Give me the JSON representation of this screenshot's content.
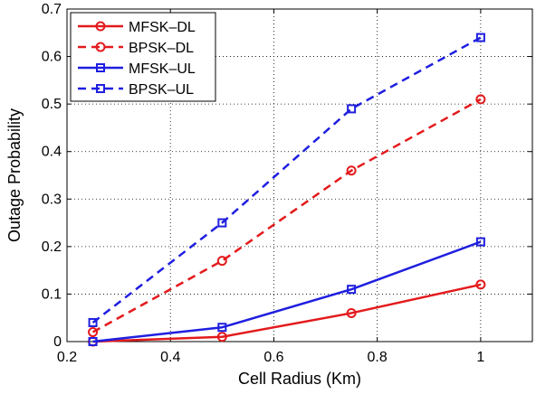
{
  "chart_data": {
    "type": "line",
    "xlabel": "Cell Radius (Km)",
    "ylabel": "Outage Probability",
    "xlim": [
      0.2,
      1.1
    ],
    "ylim": [
      0,
      0.7
    ],
    "xticks": [
      0.2,
      0.4,
      0.6,
      0.8,
      1
    ],
    "xtick_labels": [
      "0.2",
      "0.4",
      "0.6",
      "0.8",
      "1"
    ],
    "yticks": [
      0,
      0.1,
      0.2,
      0.3,
      0.4,
      0.5,
      0.6,
      0.7
    ],
    "ytick_labels": [
      "0",
      "0.1",
      "0.2",
      "0.3",
      "0.4",
      "0.5",
      "0.6",
      "0.7"
    ],
    "grid": true,
    "legend_position": "top-left",
    "x": [
      0.25,
      0.5,
      0.75,
      1.0
    ],
    "series": [
      {
        "name": "MFSK–DL",
        "values": [
          0.0,
          0.01,
          0.06,
          0.12
        ],
        "color": "#e31a1c",
        "line": "solid",
        "marker": "circle"
      },
      {
        "name": "BPSK–DL",
        "values": [
          0.02,
          0.17,
          0.36,
          0.51
        ],
        "color": "#e31a1c",
        "line": "dashed",
        "marker": "circle"
      },
      {
        "name": "MFSK–UL",
        "values": [
          0.0,
          0.03,
          0.11,
          0.21
        ],
        "color": "#1f1fe0",
        "line": "solid",
        "marker": "square"
      },
      {
        "name": "BPSK–UL",
        "values": [
          0.04,
          0.25,
          0.49,
          0.64
        ],
        "color": "#1f1fe0",
        "line": "dashed",
        "marker": "square"
      }
    ]
  }
}
